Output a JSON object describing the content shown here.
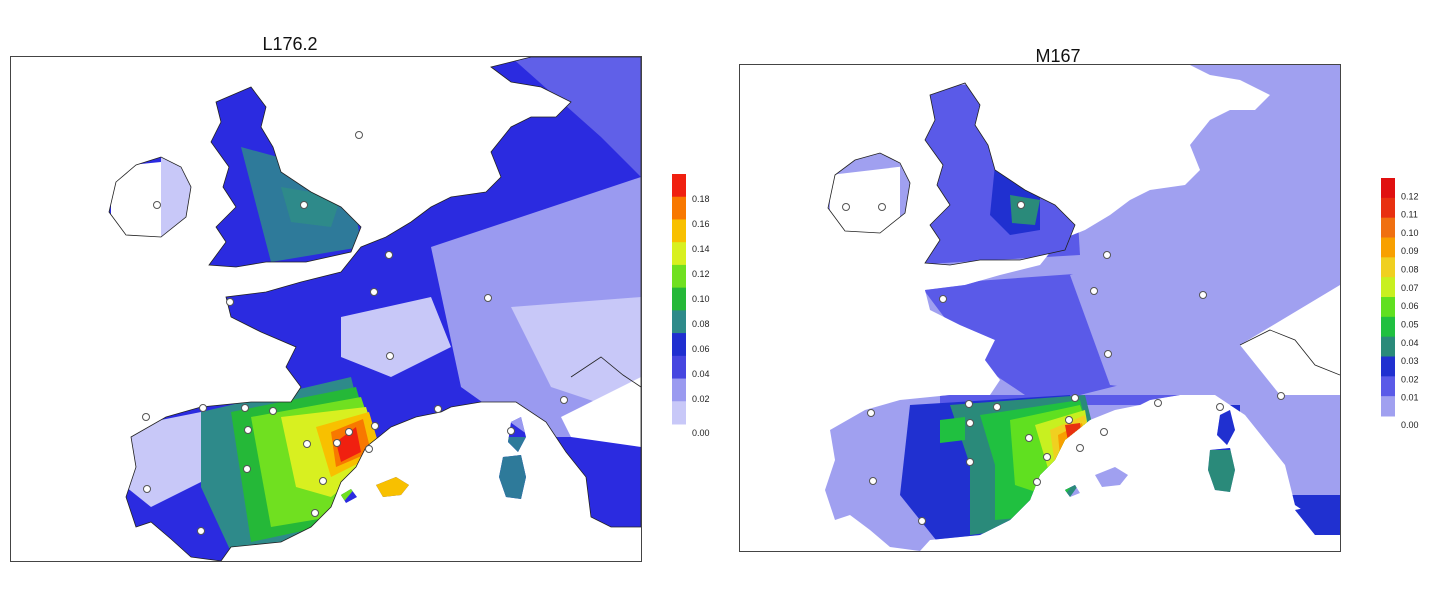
{
  "maps": [
    {
      "title": "L176.2",
      "legend_ticks": [
        "0.00",
        "0.02",
        "0.04",
        "0.06",
        "0.08",
        "0.10",
        "0.12",
        "0.14",
        "0.16",
        "0.18"
      ],
      "legend_colors": [
        "#c8c8f8",
        "#9a9af0",
        "#4646e0",
        "#1f2fd0",
        "#2e8a8a",
        "#25b838",
        "#70e020",
        "#d8f020",
        "#f8c000",
        "#f87800",
        "#f02010"
      ],
      "sample_points": 26
    },
    {
      "title": "M167",
      "legend_ticks": [
        "0.00",
        "0.01",
        "0.02",
        "0.03",
        "0.04",
        "0.05",
        "0.06",
        "0.07",
        "0.08",
        "0.09",
        "0.10",
        "0.11",
        "0.12"
      ],
      "legend_colors": [
        "#a0a0f0",
        "#5a5ae8",
        "#2030d0",
        "#2a8a7a",
        "#20c040",
        "#60e020",
        "#c8f020",
        "#f0d020",
        "#f8a000",
        "#f07010",
        "#e83010",
        "#e01010"
      ],
      "sample_points": 25
    }
  ],
  "colors": {
    "land_outline": "#222222",
    "point_fill": "#ffffff",
    "point_stroke": "#555555"
  }
}
